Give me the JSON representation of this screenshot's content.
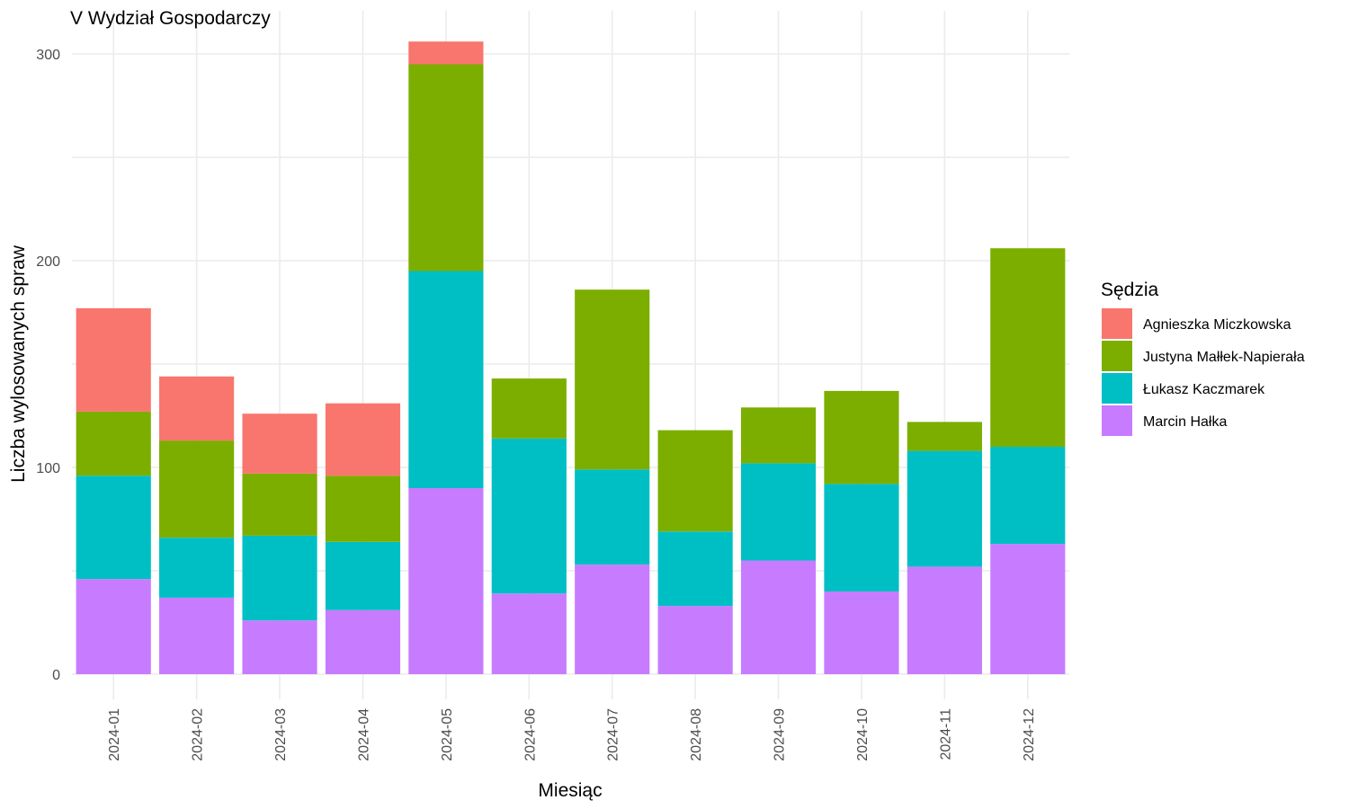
{
  "chart_data": {
    "type": "bar",
    "stacked": true,
    "title": "V Wydział Gospodarczy",
    "xlabel": "Miesiąc",
    "ylabel": "Liczba wylosowanych spraw",
    "ylim": [
      0,
      310
    ],
    "yticks": [
      0,
      100,
      200,
      300
    ],
    "grid": true,
    "legend_title": "Sędzia",
    "legend_position": "right",
    "categories": [
      "2024-01",
      "2024-02",
      "2024-03",
      "2024-04",
      "2024-05",
      "2024-06",
      "2024-07",
      "2024-08",
      "2024-09",
      "2024-10",
      "2024-11",
      "2024-12"
    ],
    "series": [
      {
        "name": "Agnieszka Miczkowska",
        "color": "#F8766D",
        "values": [
          50,
          31,
          29,
          35,
          11,
          0,
          0,
          0,
          0,
          0,
          0,
          0
        ]
      },
      {
        "name": "Justyna Małłek-Napierała",
        "color": "#7CAE00",
        "values": [
          31,
          47,
          30,
          32,
          100,
          29,
          87,
          49,
          27,
          45,
          14,
          96
        ]
      },
      {
        "name": "Łukasz Kaczmarek",
        "color": "#00BFC4",
        "values": [
          50,
          29,
          41,
          33,
          105,
          75,
          46,
          36,
          47,
          52,
          56,
          47
        ]
      },
      {
        "name": "Marcin Hałka",
        "color": "#C77CFF",
        "values": [
          46,
          37,
          26,
          31,
          90,
          39,
          53,
          33,
          55,
          40,
          52,
          63
        ]
      }
    ]
  }
}
